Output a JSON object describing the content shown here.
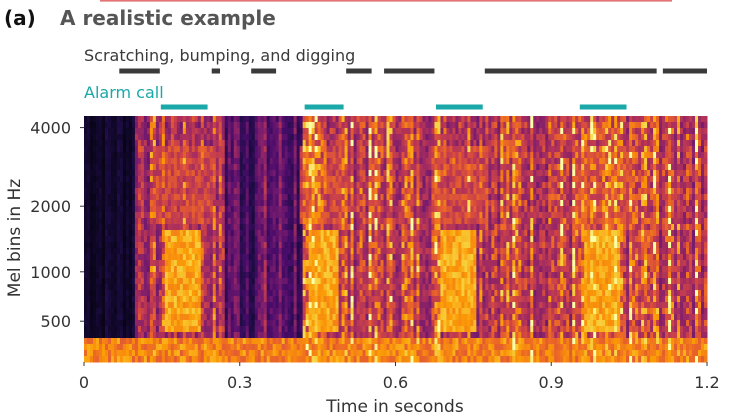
{
  "panel": {
    "label": "(a)",
    "title": "A realistic example"
  },
  "tracks": {
    "scratching": {
      "label": "Scratching, bumping, and digging",
      "color": "#3a3a3a",
      "segments": [
        [
          0.068,
          0.146
        ],
        [
          0.246,
          0.262
        ],
        [
          0.322,
          0.37
        ],
        [
          0.505,
          0.554
        ],
        [
          0.578,
          0.675
        ],
        [
          0.772,
          1.103
        ],
        [
          1.115,
          1.2
        ]
      ]
    },
    "alarm": {
      "label": "Alarm call",
      "color": "#1aa8a8",
      "segments": [
        [
          0.148,
          0.238
        ],
        [
          0.425,
          0.5
        ],
        [
          0.678,
          0.768
        ],
        [
          0.955,
          1.045
        ]
      ]
    }
  },
  "chart_data": {
    "type": "heatmap",
    "description_source": "mel spectrogram",
    "xlabel": "Time in seconds",
    "ylabel": "Mel bins in Hz",
    "xlim": [
      0,
      1.2
    ],
    "xticks": [
      0,
      0.3,
      0.6,
      0.9,
      1.2
    ],
    "xtick_labels": [
      "0",
      "0.3",
      "0.6",
      "0.9",
      "1.2"
    ],
    "yticks": [
      4000,
      2000,
      1000,
      500
    ],
    "ytick_labels": [
      "4000",
      "2000",
      "1000",
      "500"
    ],
    "yscale": "mel",
    "ylim": [
      200,
      4400
    ],
    "colormap": "inferno",
    "alarm_calls_s": [
      [
        0.148,
        0.238
      ],
      [
        0.425,
        0.5
      ],
      [
        0.678,
        0.768
      ],
      [
        0.955,
        1.045
      ]
    ],
    "accent_line_color": "#e57373"
  }
}
